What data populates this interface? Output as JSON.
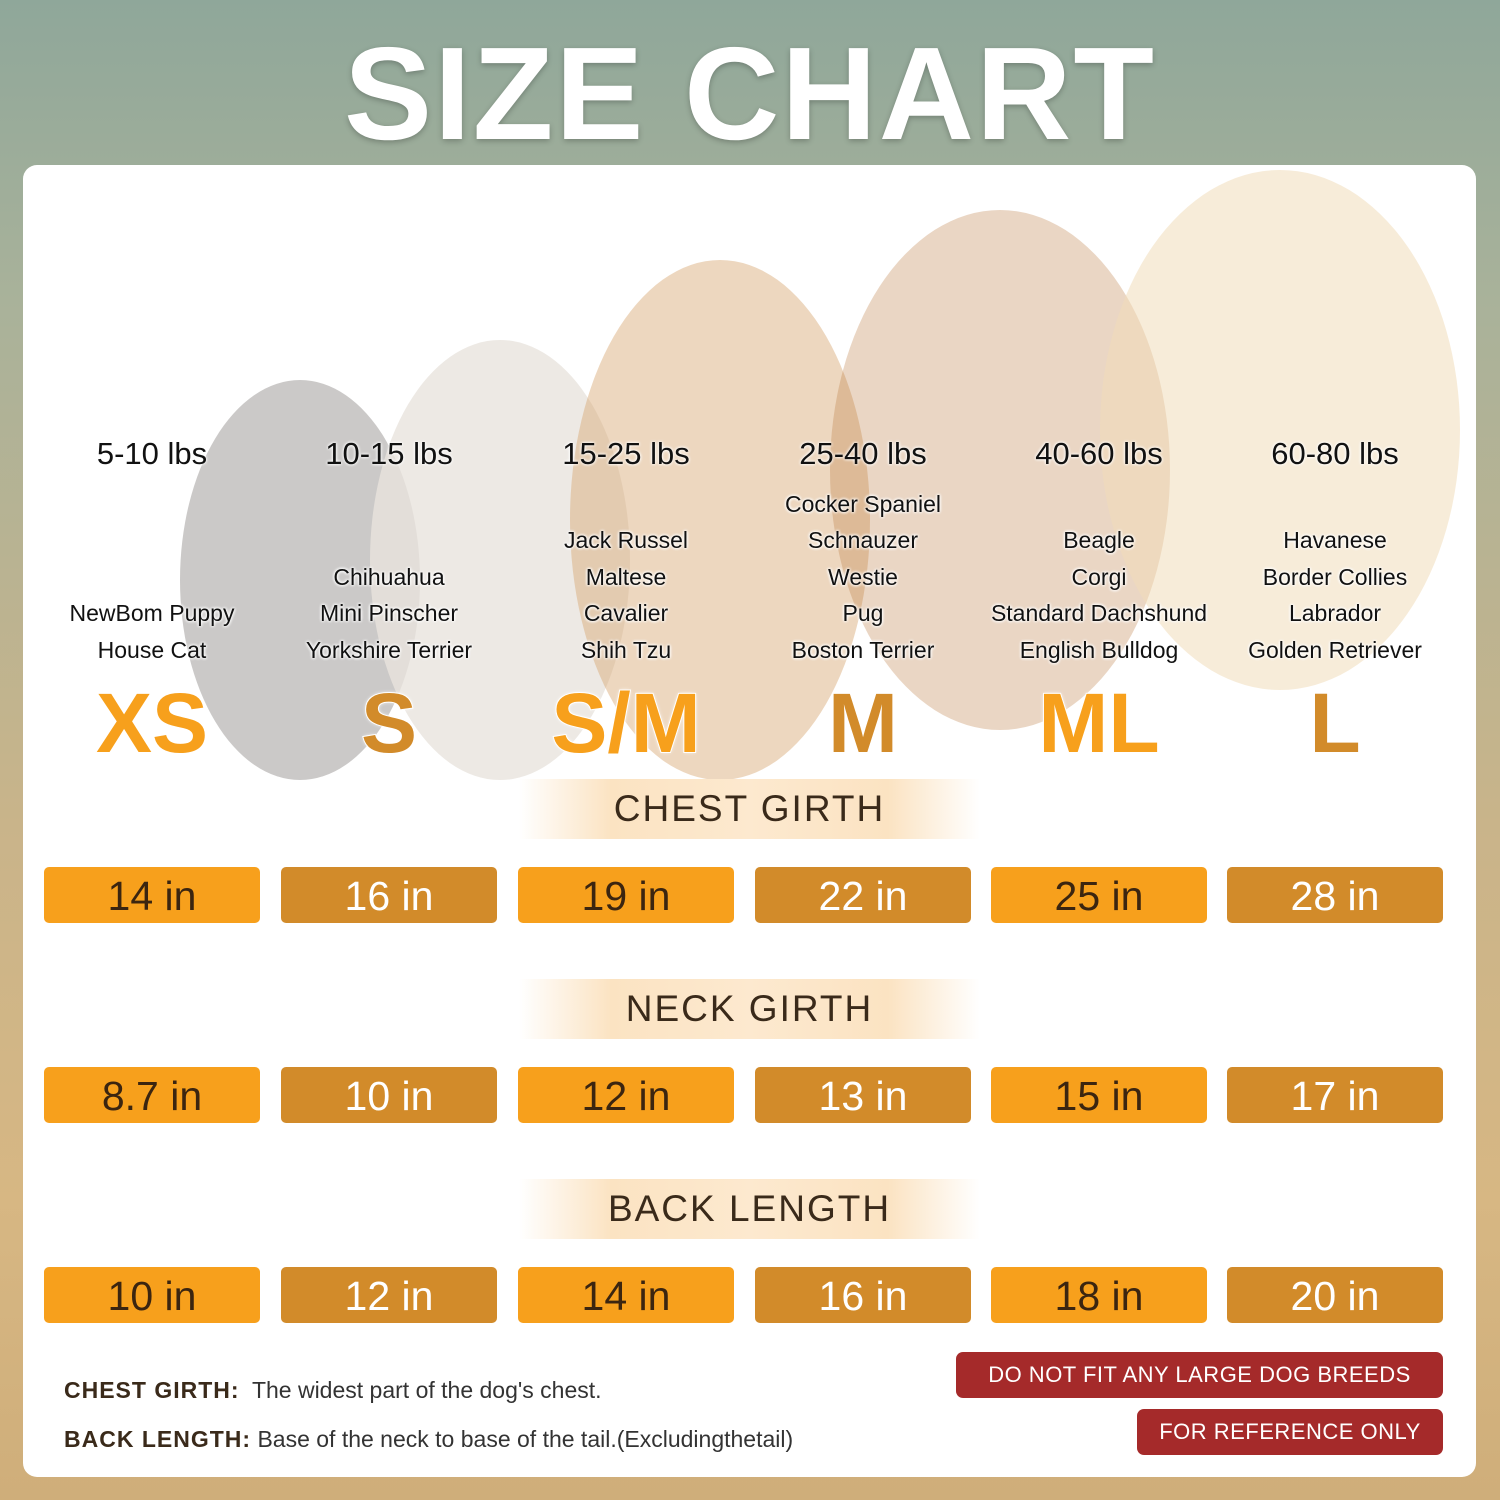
{
  "title": "SIZE CHART",
  "colors": {
    "primary_orange": "#f7a01c",
    "alt_orange": "#d28b2a",
    "warning_red": "#a52a2a"
  },
  "sizes": [
    {
      "label": "XS",
      "weight": "5-10 lbs",
      "breeds": [
        "NewBom Puppy",
        "House Cat"
      ],
      "color": "#f7a01c"
    },
    {
      "label": "S",
      "weight": "10-15 lbs",
      "breeds": [
        "Chihuahua",
        "Mini Pinscher",
        "Yorkshire Terrier"
      ],
      "color": "#d28b2a"
    },
    {
      "label": "S/M",
      "weight": "15-25 lbs",
      "breeds": [
        "Jack Russel",
        "Maltese",
        "Cavalier",
        "Shih Tzu"
      ],
      "color": "#f7a01c"
    },
    {
      "label": "M",
      "weight": "25-40 lbs",
      "breeds": [
        "Cocker Spaniel",
        "Schnauzer",
        "Westie",
        "Pug",
        "Boston Terrier"
      ],
      "color": "#d28b2a"
    },
    {
      "label": "ML",
      "weight": "40-60 lbs",
      "breeds": [
        "Beagle",
        "Corgi",
        "Standard Dachshund",
        "English Bulldog"
      ],
      "color": "#f7a01c"
    },
    {
      "label": "L",
      "weight": "60-80 lbs",
      "breeds": [
        "Havanese",
        "Border Collies",
        "Labrador",
        "Golden Retriever"
      ],
      "color": "#d28b2a"
    }
  ],
  "measurements": [
    {
      "name": "CHEST GIRTH",
      "values": [
        "14 in",
        "16 in",
        "19 in",
        "22 in",
        "25 in",
        "28 in"
      ]
    },
    {
      "name": "NECK GIRTH",
      "values": [
        "8.7 in",
        "10 in",
        "12 in",
        "13 in",
        "15 in",
        "17 in"
      ]
    },
    {
      "name": "BACK LENGTH",
      "values": [
        "10 in",
        "12 in",
        "14 in",
        "16 in",
        "18 in",
        "20 in"
      ]
    }
  ],
  "notes": [
    {
      "term": "CHEST GIRTH:",
      "text": "The widest part of the dog's chest."
    },
    {
      "term": "BACK LENGTH:",
      "text": "Base of the neck to base of the tail.(Excludingthetail)"
    }
  ],
  "warnings": [
    "DO NOT FIT ANY LARGE DOG BREEDS",
    "FOR REFERENCE ONLY"
  ]
}
